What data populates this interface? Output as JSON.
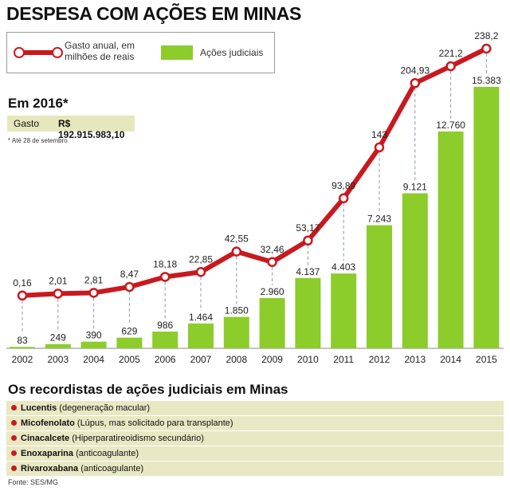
{
  "title": "DESPESA COM AÇÕES EM MINAS",
  "legend": {
    "line_label": "Gasto anual, em milhões de reais",
    "bar_label": "Ações judiciais"
  },
  "year_2016": {
    "heading": "Em 2016*",
    "gasto_label": "Gasto",
    "gasto_value": "R$ 192.915.983,10",
    "note": "* Até 28 de setembro"
  },
  "colors": {
    "line": "#c8191e",
    "bar": "#8ccc2b",
    "panel": "#e8e8c4"
  },
  "chart_data": {
    "type": "bar",
    "categories": [
      "2002",
      "2003",
      "2004",
      "2005",
      "2006",
      "2007",
      "2008",
      "2009",
      "2010",
      "2011",
      "2012",
      "2013",
      "2014",
      "2015"
    ],
    "series": [
      {
        "name": "Ações judiciais",
        "type": "bar",
        "values": [
          83,
          249,
          390,
          629,
          986,
          1464,
          1850,
          2960,
          4137,
          4403,
          7243,
          9121,
          12760,
          15383
        ],
        "labels": [
          "83",
          "249",
          "390",
          "629",
          "986",
          "1.464",
          "1.850",
          "2.960",
          "4.137",
          "4.403",
          "7.243",
          "9.121",
          "12.760",
          "15.383"
        ]
      },
      {
        "name": "Gasto anual, em milhões de reais",
        "type": "line",
        "values": [
          0.16,
          2.01,
          2.81,
          8.47,
          18.18,
          22.85,
          42.55,
          32.46,
          53.17,
          93.89,
          143,
          204.93,
          221.2,
          238.2
        ],
        "labels": [
          "0,16",
          "2,01",
          "2,81",
          "8,47",
          "18,18",
          "22,85",
          "42,55",
          "32,46",
          "53,17",
          "93,89",
          "143",
          "204,93",
          "221,2",
          "238,2"
        ]
      }
    ]
  },
  "recordistas": {
    "title": "Os recordistas de ações judiciais em Minas",
    "items": [
      {
        "name": "Lucentis",
        "desc": "(degeneração macular)"
      },
      {
        "name": "Micofenolato",
        "desc": "(Lúpus, mas solicitado para transplante)"
      },
      {
        "name": "Cinacalcete",
        "desc": "(Hiperparatireoidismo secundário)"
      },
      {
        "name": "Enoxaparina",
        "desc": "(anticoagulante)"
      },
      {
        "name": "Rivaroxabana",
        "desc": "(anticoagulante)"
      }
    ]
  },
  "source": "Fonte: SES/MG"
}
